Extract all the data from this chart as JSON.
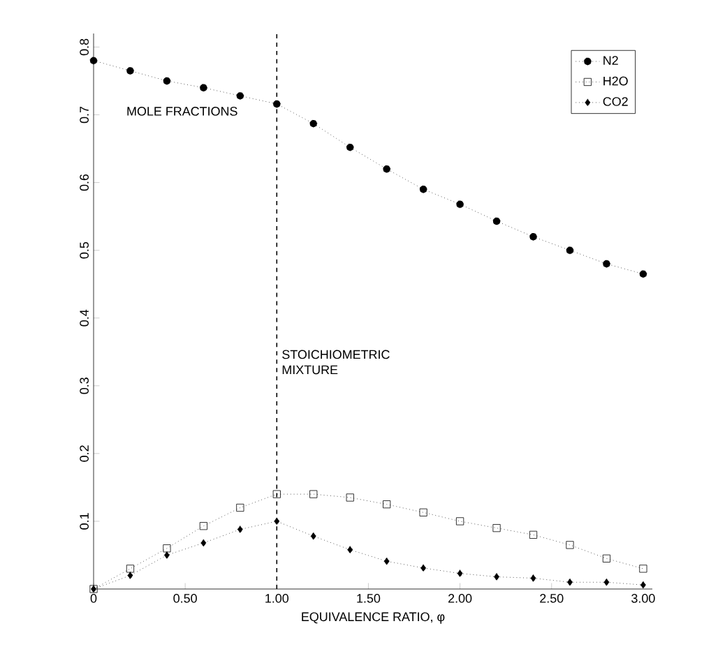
{
  "chart_data": {
    "type": "line",
    "xlabel": "EQUIVALENCE RATIO, φ",
    "ylabel": "MOLE FRACTIONS",
    "x": [
      0,
      0.2,
      0.4,
      0.6,
      0.8,
      1.0,
      1.2,
      1.4,
      1.6,
      1.8,
      2.0,
      2.2,
      2.4,
      2.6,
      2.8,
      3.0
    ],
    "series": [
      {
        "name": "N2",
        "color": "#000000",
        "marker": "circle",
        "values": [
          0.78,
          0.765,
          0.75,
          0.74,
          0.728,
          0.716,
          0.687,
          0.652,
          0.62,
          0.59,
          0.568,
          0.543,
          0.52,
          0.5,
          0.48,
          0.465
        ]
      },
      {
        "name": "H2O",
        "color": "#000000",
        "marker": "square",
        "values": [
          0,
          0.03,
          0.06,
          0.093,
          0.12,
          0.14,
          0.14,
          0.135,
          0.125,
          0.113,
          0.1,
          0.09,
          0.08,
          0.065,
          0.045,
          0.03
        ]
      },
      {
        "name": "CO2",
        "color": "#000000",
        "marker": "diamond",
        "values": [
          0,
          0.02,
          0.05,
          0.068,
          0.088,
          0.1,
          0.078,
          0.058,
          0.041,
          0.031,
          0.023,
          0.018,
          0.016,
          0.01,
          0.01,
          0.006
        ]
      }
    ],
    "line_style": "dotted",
    "xlim": [
      0,
      3.05
    ],
    "ylim": [
      0,
      0.82
    ],
    "xticks": [
      0,
      {
        "value": 0.5,
        "label": "0.50"
      },
      {
        "value": 1.0,
        "label": "1.00"
      },
      {
        "value": 1.5,
        "label": "1.50"
      },
      {
        "value": 2.0,
        "label": "2.00"
      },
      {
        "value": 2.5,
        "label": "2.50"
      },
      {
        "value": 3.0,
        "label": "3.00"
      }
    ],
    "yticks": [
      0.1,
      0.2,
      0.3,
      0.4,
      0.5,
      0.6,
      0.7,
      0.8
    ],
    "ref_lines": [
      {
        "axis": "x",
        "value": 1.0,
        "label": "STOICHIOMETRIC MIXTURE",
        "line_style": "dashed"
      }
    ],
    "legend": "top right",
    "grid": false
  }
}
